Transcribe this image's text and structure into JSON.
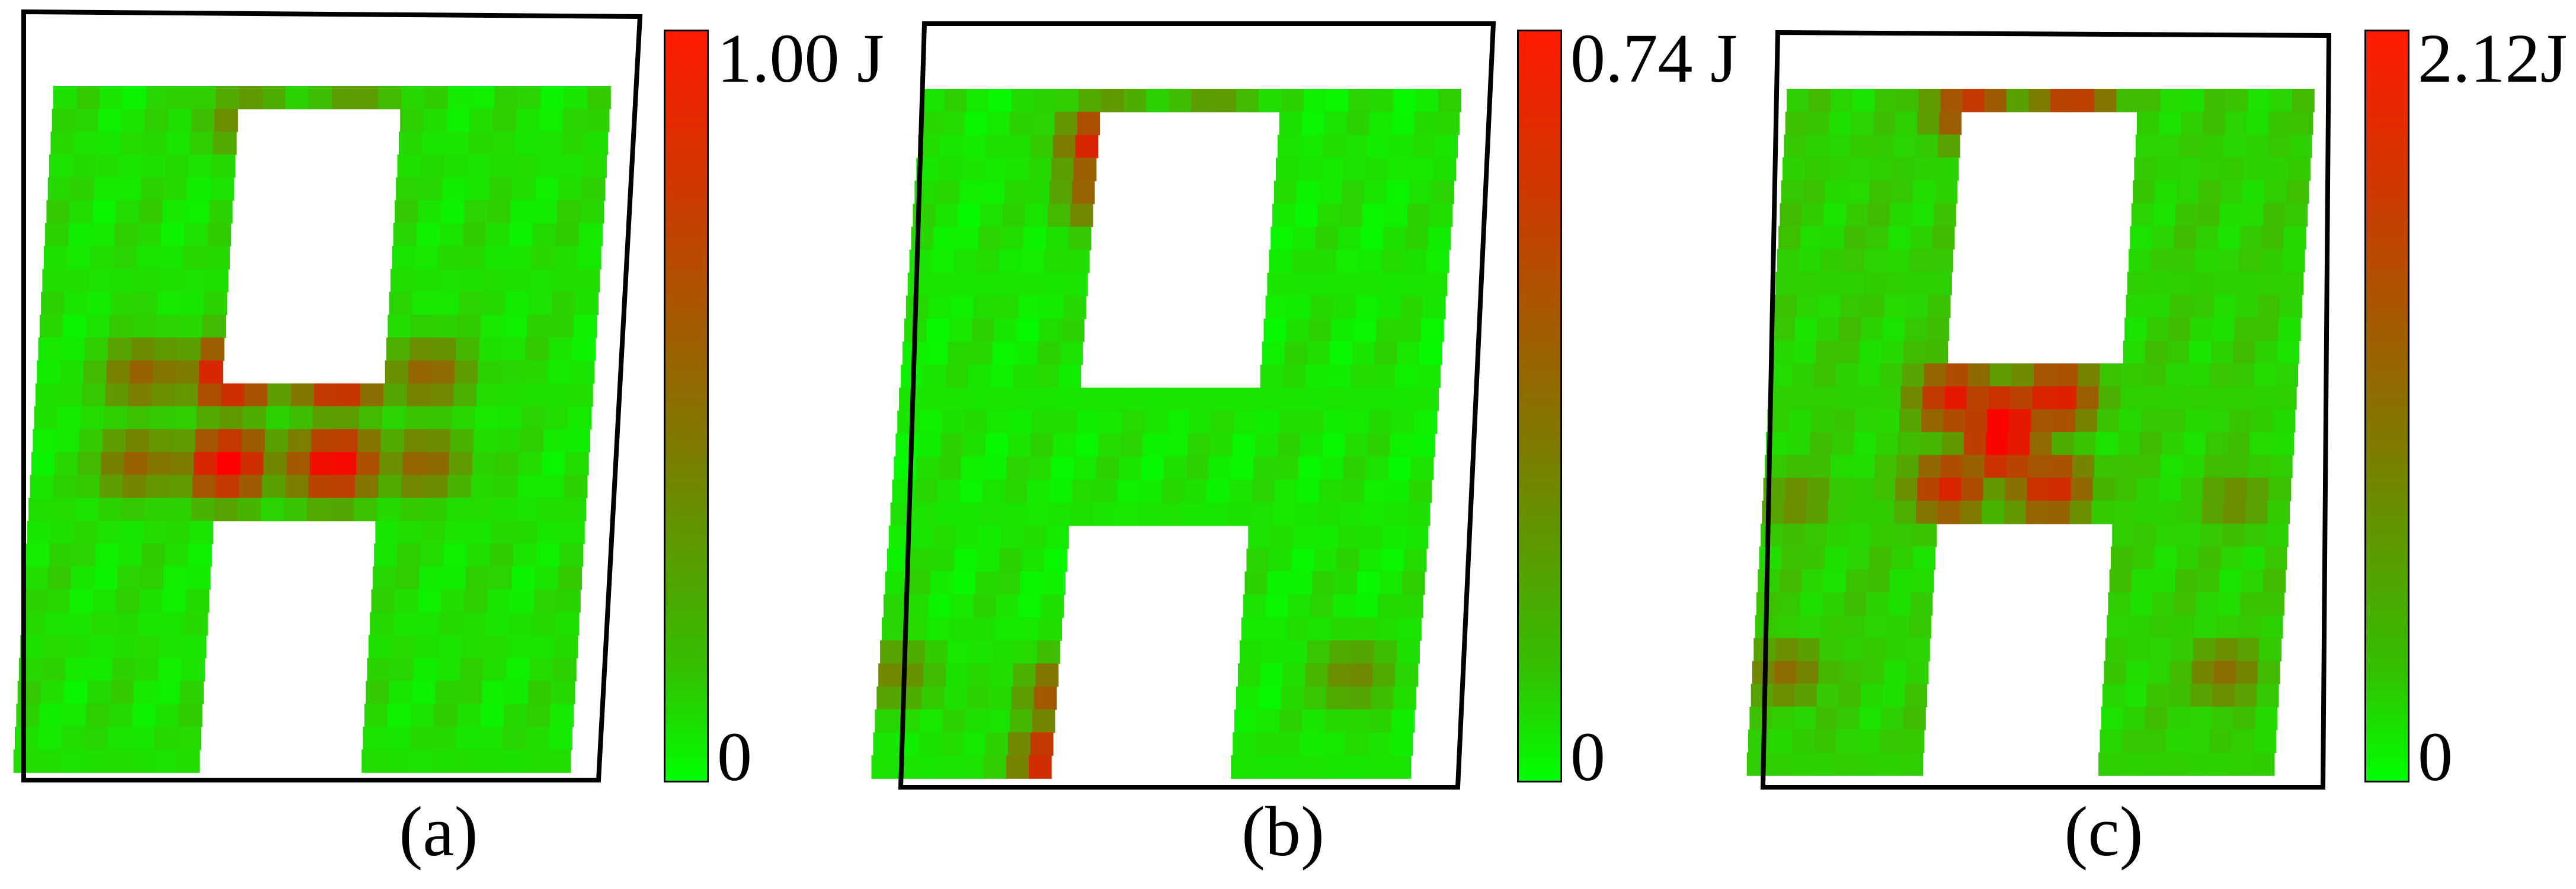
{
  "panels": [
    {
      "id": "a",
      "caption": "(a)",
      "colorbar_max": "1.00 J",
      "colorbar_min": "0",
      "hotspots": [
        [
          0.22,
          0.42,
          1.0
        ],
        [
          0.34,
          0.42,
          1.0
        ],
        [
          0.22,
          0.55,
          1.0
        ],
        [
          0.34,
          0.55,
          1.0
        ],
        [
          0.12,
          0.42,
          0.6
        ],
        [
          0.44,
          0.42,
          0.6
        ],
        [
          0.12,
          0.55,
          0.6
        ],
        [
          0.44,
          0.55,
          0.6
        ],
        [
          0.22,
          0.05,
          0.5
        ],
        [
          0.34,
          0.05,
          0.5
        ]
      ],
      "background_level": 0.12
    },
    {
      "id": "b",
      "caption": "(b)",
      "colorbar_max": "0.74 J",
      "colorbar_min": "0",
      "hotspots": [
        [
          0.22,
          0.08,
          1.0
        ],
        [
          0.34,
          0.08,
          1.0
        ],
        [
          0.22,
          0.15,
          0.7
        ],
        [
          0.34,
          0.15,
          0.7
        ],
        [
          0.22,
          0.97,
          1.0
        ],
        [
          0.34,
          0.97,
          1.0
        ],
        [
          0.22,
          0.88,
          0.75
        ],
        [
          0.34,
          0.88,
          0.75
        ],
        [
          0.02,
          0.85,
          0.45
        ],
        [
          0.55,
          0.85,
          0.45
        ]
      ],
      "background_level": 0.1
    },
    {
      "id": "c",
      "caption": "(c)",
      "colorbar_max": "2.12J",
      "colorbar_min": "0",
      "hotspots": [
        [
          0.28,
          0.48,
          1.0
        ],
        [
          0.28,
          0.52,
          1.0
        ],
        [
          0.22,
          0.45,
          0.9
        ],
        [
          0.34,
          0.45,
          0.9
        ],
        [
          0.22,
          0.58,
          0.85
        ],
        [
          0.34,
          0.58,
          0.85
        ],
        [
          0.22,
          0.03,
          0.8
        ],
        [
          0.34,
          0.03,
          0.8
        ],
        [
          0.04,
          0.85,
          0.55
        ],
        [
          0.56,
          0.85,
          0.55
        ],
        [
          0.04,
          0.6,
          0.45
        ],
        [
          0.56,
          0.6,
          0.45
        ]
      ],
      "background_level": 0.18
    }
  ],
  "colors": {
    "low": "#00ff00",
    "mid": "#7f7a00",
    "high": "#ff0000",
    "frame": "#000000"
  }
}
